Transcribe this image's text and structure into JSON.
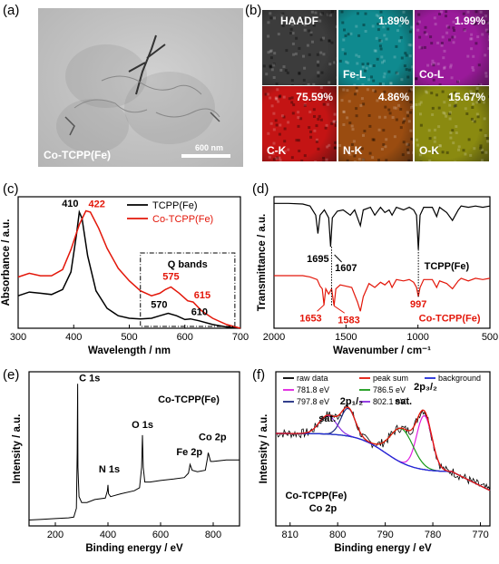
{
  "panels": {
    "a": {
      "label": "(a)",
      "caption": "Co-TCPP(Fe)",
      "scalebar": "600 nm"
    },
    "b": {
      "label": "(b)",
      "maps": [
        {
          "title": "HAADF",
          "element": "",
          "pct": "",
          "color": "#3c3c3c"
        },
        {
          "title": "",
          "element": "Fe-L",
          "pct": "1.89%",
          "color": "#0f8a8f"
        },
        {
          "title": "",
          "element": "Co-L",
          "pct": "1.99%",
          "color": "#9a1a9a"
        },
        {
          "title": "",
          "element": "C-K",
          "pct": "75.59%",
          "color": "#c41414"
        },
        {
          "title": "",
          "element": "N-K",
          "pct": "4.86%",
          "color": "#9a4c10"
        },
        {
          "title": "",
          "element": "O-K",
          "pct": "15.67%",
          "color": "#8a8a10"
        }
      ]
    },
    "c": {
      "label": "(c)"
    },
    "d": {
      "label": "(d)"
    },
    "e": {
      "label": "(e)"
    },
    "f": {
      "label": "(f)"
    }
  },
  "chart_data": [
    {
      "id": "c",
      "type": "line",
      "xlabel": "Wavelength / nm",
      "ylabel": "Absorbance / a.u.",
      "xlim": [
        300,
        700
      ],
      "xticks": [
        300,
        400,
        500,
        600,
        700
      ],
      "series": [
        {
          "name": "TCPP(Fe)",
          "color": "#000000",
          "x": [
            300,
            320,
            340,
            360,
            380,
            395,
            405,
            410,
            415,
            425,
            440,
            460,
            480,
            500,
            520,
            540,
            555,
            570,
            585,
            600,
            610,
            625,
            650,
            675,
            700
          ],
          "y": [
            0.26,
            0.29,
            0.28,
            0.27,
            0.31,
            0.45,
            0.75,
            0.93,
            0.88,
            0.58,
            0.3,
            0.16,
            0.1,
            0.08,
            0.075,
            0.08,
            0.1,
            0.12,
            0.1,
            0.07,
            0.075,
            0.06,
            0.03,
            0.01,
            0.0
          ]
        },
        {
          "name": "Co-TCPP(Fe)",
          "color": "#e3170a",
          "x": [
            300,
            320,
            340,
            360,
            380,
            395,
            410,
            422,
            430,
            445,
            460,
            480,
            500,
            520,
            540,
            555,
            565,
            575,
            590,
            605,
            615,
            630,
            650,
            675,
            700
          ],
          "y": [
            0.41,
            0.44,
            0.42,
            0.42,
            0.47,
            0.63,
            0.83,
            0.94,
            0.93,
            0.8,
            0.64,
            0.48,
            0.38,
            0.3,
            0.26,
            0.28,
            0.31,
            0.33,
            0.28,
            0.22,
            0.21,
            0.14,
            0.08,
            0.03,
            0.0
          ]
        }
      ],
      "annotations": [
        {
          "text": "410",
          "color": "#000000",
          "x": 410,
          "y": 0.93
        },
        {
          "text": "422",
          "color": "#e3170a",
          "x": 422,
          "y": 0.94
        },
        {
          "text": "575",
          "color": "#e3170a",
          "x": 575,
          "y": 0.33
        },
        {
          "text": "615",
          "color": "#e3170a",
          "x": 615,
          "y": 0.21
        },
        {
          "text": "570",
          "color": "#000000",
          "x": 570,
          "y": 0.12
        },
        {
          "text": "610",
          "color": "#000000",
          "x": 610,
          "y": 0.075
        }
      ],
      "box_label": "Q bands"
    },
    {
      "id": "d",
      "type": "line",
      "xlabel": "Wavenumber / cm⁻¹",
      "ylabel": "Transmittance / a.u.",
      "xlim": [
        2000,
        500
      ],
      "xticks": [
        2000,
        1500,
        1000,
        500
      ],
      "series": [
        {
          "name": "TCPP(Fe)",
          "color": "#000000",
          "x": [
            2000,
            1900,
            1800,
            1750,
            1710,
            1695,
            1680,
            1650,
            1620,
            1607,
            1595,
            1560,
            1520,
            1470,
            1440,
            1400,
            1380,
            1330,
            1300,
            1260,
            1230,
            1200,
            1180,
            1150,
            1100,
            1060,
            1030,
            1010,
            997,
            985,
            960,
            900,
            870,
            850,
            800,
            760,
            720,
            700,
            650,
            600,
            550,
            500
          ],
          "y": [
            0.95,
            0.95,
            0.945,
            0.93,
            0.86,
            0.72,
            0.86,
            0.9,
            0.84,
            0.62,
            0.84,
            0.89,
            0.9,
            0.86,
            0.9,
            0.78,
            0.9,
            0.92,
            0.86,
            0.92,
            0.88,
            0.9,
            0.86,
            0.92,
            0.9,
            0.92,
            0.9,
            0.86,
            0.6,
            0.86,
            0.92,
            0.92,
            0.85,
            0.92,
            0.88,
            0.82,
            0.9,
            0.93,
            0.92,
            0.93,
            0.92,
            0.93
          ]
        },
        {
          "name": "Co-TCPP(Fe)",
          "color": "#e3170a",
          "x": [
            2000,
            1900,
            1800,
            1750,
            1700,
            1680,
            1665,
            1653,
            1640,
            1620,
            1600,
            1583,
            1570,
            1540,
            1500,
            1460,
            1420,
            1400,
            1380,
            1340,
            1300,
            1260,
            1230,
            1200,
            1180,
            1150,
            1100,
            1060,
            1030,
            1010,
            997,
            985,
            960,
            900,
            870,
            850,
            800,
            760,
            720,
            700,
            650,
            600,
            550,
            500
          ],
          "y": [
            0.4,
            0.4,
            0.4,
            0.39,
            0.37,
            0.32,
            0.3,
            0.18,
            0.3,
            0.26,
            0.3,
            0.17,
            0.3,
            0.33,
            0.32,
            0.31,
            0.2,
            0.13,
            0.24,
            0.34,
            0.31,
            0.35,
            0.33,
            0.36,
            0.31,
            0.37,
            0.36,
            0.37,
            0.35,
            0.31,
            0.24,
            0.31,
            0.37,
            0.37,
            0.31,
            0.36,
            0.34,
            0.3,
            0.36,
            0.38,
            0.36,
            0.38,
            0.37,
            0.38
          ]
        }
      ],
      "annotations": [
        {
          "text": "1695",
          "color": "#000000"
        },
        {
          "text": "1607",
          "color": "#000000"
        },
        {
          "text": "1653",
          "color": "#e3170a"
        },
        {
          "text": "1583",
          "color": "#e3170a"
        },
        {
          "text": "997",
          "color": "#e3170a"
        }
      ],
      "series_labels": [
        {
          "text": "TCPP(Fe)",
          "color": "#000000"
        },
        {
          "text": "Co-TCPP(Fe)",
          "color": "#e3170a"
        }
      ]
    },
    {
      "id": "e",
      "type": "line",
      "xlabel": "Binding energy / eV",
      "ylabel": "Intensity / a.u.",
      "xlim": [
        100,
        900
      ],
      "xticks": [
        200,
        400,
        600,
        800
      ],
      "series": [
        {
          "name": "Co-TCPP(Fe)",
          "color": "#000000",
          "x": [
            100,
            150,
            200,
            250,
            270,
            280,
            283,
            284.8,
            286,
            290,
            300,
            320,
            350,
            390,
            398,
            400,
            402,
            410,
            450,
            500,
            520,
            528,
            531,
            534,
            540,
            560,
            600,
            650,
            690,
            706,
            712,
            720,
            740,
            770,
            778,
            781,
            790,
            800,
            850,
            900
          ],
          "y": [
            0.04,
            0.045,
            0.05,
            0.055,
            0.06,
            0.12,
            0.5,
            0.97,
            0.4,
            0.2,
            0.16,
            0.16,
            0.18,
            0.19,
            0.24,
            0.28,
            0.22,
            0.2,
            0.22,
            0.24,
            0.26,
            0.4,
            0.62,
            0.4,
            0.3,
            0.3,
            0.31,
            0.32,
            0.33,
            0.36,
            0.42,
            0.38,
            0.37,
            0.38,
            0.46,
            0.5,
            0.44,
            0.44,
            0.45,
            0.45
          ]
        }
      ],
      "annotations": [
        {
          "text": "C 1s"
        },
        {
          "text": "O 1s"
        },
        {
          "text": "N 1s"
        },
        {
          "text": "Fe 2p"
        },
        {
          "text": "Co 2p"
        }
      ],
      "title": "Co-TCPP(Fe)"
    },
    {
      "id": "f",
      "type": "line",
      "xlabel": "Binding energy / eV",
      "ylabel": "Intensity / a.u.",
      "xlim": [
        813,
        768
      ],
      "xticks": [
        810,
        800,
        790,
        780,
        770
      ],
      "legend": [
        {
          "name": "raw data",
          "color": "#000000"
        },
        {
          "name": "peak sum",
          "color": "#e3170a"
        },
        {
          "name": "background",
          "color": "#1f2bd8"
        },
        {
          "name": "781.8 eV",
          "color": "#e020e0"
        },
        {
          "name": "786.5 eV",
          "color": "#1a9a1a"
        },
        {
          "name": "797.8 eV",
          "color": "#1c2a80"
        },
        {
          "name": "802.1 eV",
          "color": "#8a2be2"
        }
      ],
      "annotations": [
        {
          "text": "sat."
        },
        {
          "text": "2p₁/₂"
        },
        {
          "text": "sat."
        },
        {
          "text": "2p₃/₂"
        }
      ],
      "sample_label": [
        "Co-TCPP(Fe)",
        "Co 2p"
      ]
    }
  ]
}
